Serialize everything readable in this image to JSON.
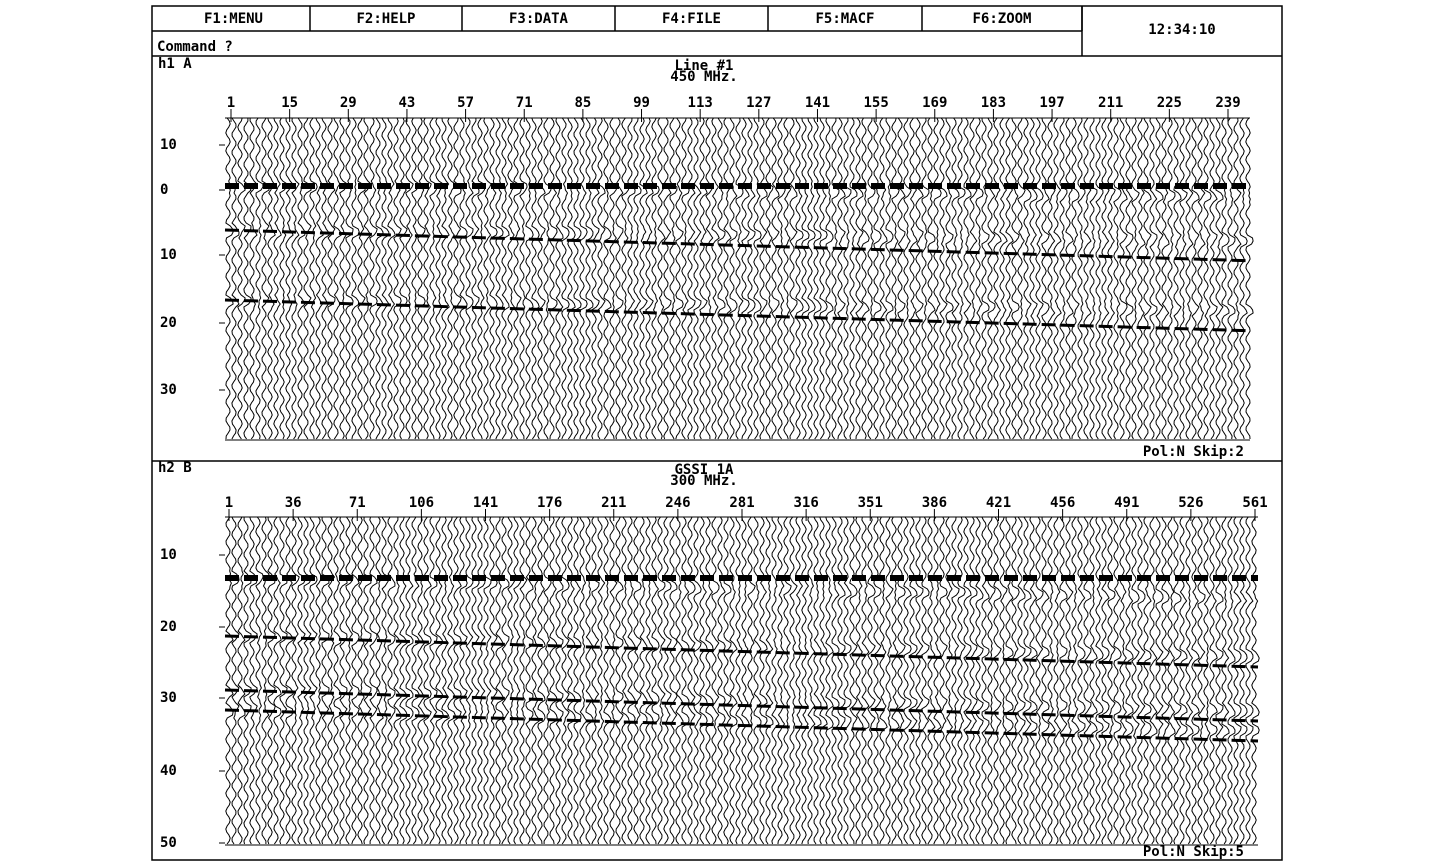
{
  "menu": {
    "items": [
      "F1:MENU",
      "F2:HELP",
      "F3:DATA",
      "F4:FILE",
      "F5:MACF",
      "F6:ZOOM"
    ],
    "time": "12:34:10"
  },
  "command": "Command ?",
  "panels": [
    {
      "id": "h1 A",
      "title": "Line #1",
      "subtitle": "450 MHz.",
      "x_labels": [
        "1",
        "15",
        "29",
        "43",
        "57",
        "71",
        "85",
        "99",
        "113",
        "127",
        "141",
        "155",
        "169",
        "183",
        "197",
        "211",
        "225",
        "239"
      ],
      "y_labels": [
        "10",
        "0",
        "10",
        "20",
        "30"
      ],
      "footer": "Pol:N Skip:2"
    },
    {
      "id": "h2 B",
      "title": "GSSI 1A",
      "subtitle": "300 MHz.",
      "x_labels": [
        "1",
        "36",
        "71",
        "106",
        "141",
        "176",
        "211",
        "246",
        "281",
        "316",
        "351",
        "386",
        "421",
        "456",
        "491",
        "526",
        "561"
      ],
      "y_labels": [
        "10",
        "20",
        "30",
        "40",
        "50"
      ],
      "footer": "Pol:N Skip:5"
    }
  ]
}
